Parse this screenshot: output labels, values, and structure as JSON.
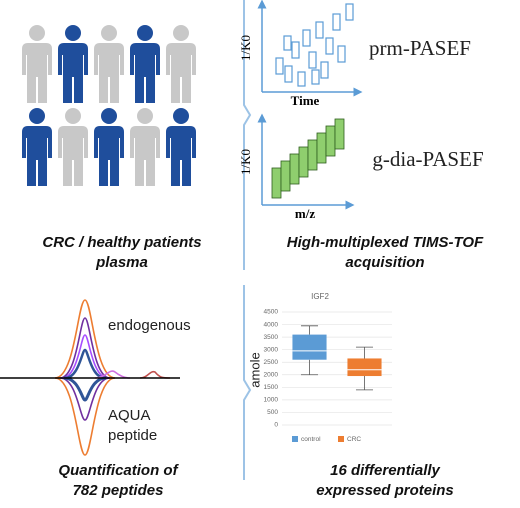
{
  "top_left": {
    "caption": [
      "CRC / healthy patients",
      "plasma"
    ]
  },
  "top_right": {
    "plots": [
      {
        "label": "prm-PASEF",
        "x_label": "Time",
        "y_label": "1/K0"
      },
      {
        "label": "g-dia-PASEF",
        "x_label": "m/z",
        "y_label": "1/K0"
      }
    ],
    "caption": [
      "High-multiplexed TIMS-TOF",
      "acquisition"
    ]
  },
  "bottom_left": {
    "labels": {
      "upper": "endogenous",
      "lower": [
        "AQUA",
        "peptide"
      ]
    },
    "caption": [
      "Quantification of",
      "782 peptides"
    ]
  },
  "bottom_right": {
    "caption": [
      "16 differentially",
      "expressed proteins"
    ],
    "chart_data": {
      "type": "box",
      "title": "IGF2",
      "y_label": "amole",
      "ylim": [
        0,
        4500
      ],
      "yticks": [
        0,
        500,
        1000,
        1500,
        2000,
        2500,
        3000,
        3500,
        4000,
        4500
      ],
      "legend": "bottom",
      "series": [
        {
          "name": "control",
          "color": "#5b9bd5",
          "min": 2000,
          "q1": 2600,
          "median": 2950,
          "q3": 3600,
          "max": 3950
        },
        {
          "name": "CRC",
          "color": "#ed7d31",
          "min": 1400,
          "q1": 1950,
          "median": 2200,
          "q3": 2650,
          "max": 3100
        }
      ]
    }
  }
}
